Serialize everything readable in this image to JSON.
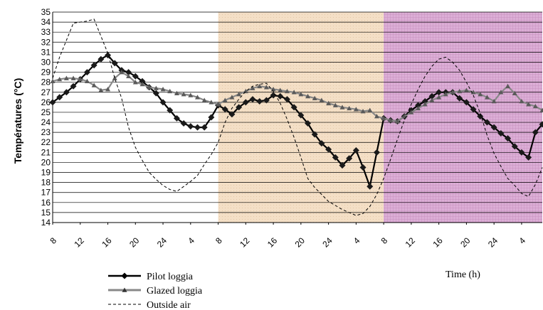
{
  "chart_data": {
    "type": "line",
    "ylabel": "Températures (°C)",
    "xlabel": "Time (h)",
    "ylim": [
      14,
      35
    ],
    "y_ticks": [
      14,
      15,
      16,
      17,
      18,
      19,
      20,
      21,
      22,
      23,
      24,
      25,
      26,
      27,
      28,
      29,
      30,
      31,
      32,
      33,
      34,
      35
    ],
    "x_tick_labels": [
      "8",
      "12",
      "16",
      "20",
      "24",
      "4",
      "8",
      "12",
      "16",
      "20",
      "24",
      "4",
      "8",
      "12",
      "16",
      "20",
      "24",
      "4"
    ],
    "x_unit": "hours elapsed (x axis runs 8h to ~7h on day 3)",
    "x_range": [
      0,
      71
    ],
    "grid": "horizontal",
    "legend_position": "bottom-left",
    "shaded_periods": [
      {
        "from": 24,
        "to": 48,
        "color": "#f3dcc0"
      },
      {
        "from": 48,
        "to": 71,
        "color": "#d9a8d2"
      }
    ],
    "series": [
      {
        "name": "Pilot loggia",
        "style": "solid-diamond",
        "color": "#000000",
        "x": [
          0,
          1,
          2,
          3,
          4,
          5,
          6,
          7,
          8,
          9,
          10,
          11,
          12,
          13,
          14,
          15,
          16,
          17,
          18,
          19,
          20,
          21,
          22,
          23,
          24,
          25,
          26,
          27,
          28,
          29,
          30,
          31,
          32,
          33,
          34,
          35,
          36,
          37,
          38,
          39,
          40,
          41,
          42,
          43,
          44,
          45,
          46,
          47,
          48,
          49,
          50,
          51,
          52,
          53,
          54,
          55,
          56,
          57,
          58,
          59,
          60,
          61,
          62,
          63,
          64,
          65,
          66,
          67,
          68,
          69,
          70,
          71
        ],
        "y": [
          26,
          26.5,
          27,
          27.6,
          28.3,
          29,
          29.7,
          30.3,
          30.7,
          29.9,
          29.2,
          29,
          28.6,
          28.1,
          27.5,
          26.9,
          26,
          25.2,
          24.4,
          23.9,
          23.6,
          23.5,
          23.5,
          24.5,
          25.7,
          25.3,
          24.8,
          25.5,
          26,
          26.3,
          26.1,
          26.2,
          26.7,
          26.6,
          26.3,
          25.5,
          24.7,
          23.9,
          22.8,
          21.9,
          21.3,
          20.5,
          19.7,
          20.4,
          21.2,
          19.5,
          17.6,
          21,
          24.4,
          24.2,
          24.1,
          24.6,
          25.2,
          25.7,
          26.1,
          26.6,
          27,
          27,
          27,
          26.4,
          26,
          25.3,
          24.6,
          24,
          23.5,
          22.9,
          22.4,
          21.6,
          21,
          20.5,
          23,
          23.8
        ]
      },
      {
        "name": "Glazed loggia",
        "style": "solid-triangle",
        "color": "#888888",
        "x": [
          0,
          1,
          2,
          3,
          4,
          5,
          6,
          7,
          8,
          9,
          10,
          11,
          12,
          13,
          14,
          15,
          16,
          17,
          18,
          19,
          20,
          21,
          22,
          23,
          24,
          25,
          26,
          27,
          28,
          29,
          30,
          31,
          32,
          33,
          34,
          35,
          36,
          37,
          38,
          39,
          40,
          41,
          42,
          43,
          44,
          45,
          46,
          47,
          48,
          49,
          50,
          51,
          52,
          53,
          54,
          55,
          56,
          57,
          58,
          59,
          60,
          61,
          62,
          63,
          64,
          65,
          66,
          67,
          68,
          69,
          70,
          71
        ],
        "y": [
          28.1,
          28.3,
          28.4,
          28.4,
          28.3,
          28.1,
          27.7,
          27.2,
          27.3,
          28.4,
          29,
          28.6,
          28,
          27.8,
          27.5,
          27.4,
          27.3,
          27.1,
          26.9,
          26.8,
          26.7,
          26.5,
          26.2,
          26,
          25.8,
          26.2,
          26.5,
          26.8,
          27.1,
          27.4,
          27.6,
          27.5,
          27.3,
          27.2,
          27.1,
          27,
          26.8,
          26.6,
          26.4,
          26.2,
          25.9,
          25.7,
          25.5,
          25.4,
          25.3,
          25.1,
          25.2,
          24.6,
          24.4,
          24.2,
          24.1,
          24.6,
          25,
          25.4,
          25.8,
          26.2,
          26.5,
          26.8,
          27,
          27.1,
          27.2,
          27,
          26.8,
          26.5,
          26.1,
          27,
          27.6,
          26.9,
          26.1,
          25.8,
          25.6,
          25.2
        ]
      },
      {
        "name": "Outside air",
        "style": "dashed",
        "color": "#000000",
        "x": [
          0,
          1,
          2,
          3,
          4,
          5,
          6,
          7,
          8,
          9,
          10,
          11,
          12,
          13,
          14,
          15,
          16,
          17,
          18,
          19,
          20,
          21,
          22,
          23,
          24,
          25,
          26,
          27,
          28,
          29,
          30,
          31,
          32,
          33,
          34,
          35,
          36,
          37,
          38,
          39,
          40,
          41,
          42,
          43,
          44,
          45,
          46,
          47,
          48,
          49,
          50,
          51,
          52,
          53,
          54,
          55,
          56,
          57,
          58,
          59,
          60,
          61,
          62,
          63,
          64,
          65,
          66,
          67,
          68,
          69,
          70,
          71
        ],
        "y": [
          28.4,
          30.5,
          32.2,
          33.9,
          34,
          34.1,
          34.3,
          32.6,
          30.9,
          28.4,
          26.4,
          23.5,
          21.5,
          20.2,
          19,
          18.3,
          17.7,
          17.3,
          17.1,
          17.6,
          18.1,
          18.7,
          19.8,
          20.8,
          22,
          24,
          25.4,
          26.3,
          27.1,
          27.6,
          27.8,
          27.9,
          27.1,
          25.9,
          24.3,
          22.5,
          20.5,
          18.4,
          17.5,
          16.8,
          16.1,
          15.7,
          15.3,
          15,
          14.7,
          14.9,
          15.6,
          16.8,
          18.4,
          20.3,
          22.3,
          24.2,
          25.8,
          27.3,
          28.6,
          29.6,
          30.3,
          30.5,
          30,
          29.2,
          28,
          26.7,
          24.9,
          22.7,
          20.9,
          19.6,
          18.4,
          17.7,
          16.9,
          16.6,
          17.8,
          19.5
        ]
      }
    ],
    "legend": [
      {
        "label": "Pilot loggia"
      },
      {
        "label": "Glazed loggia"
      },
      {
        "label": "Outside air"
      }
    ]
  }
}
